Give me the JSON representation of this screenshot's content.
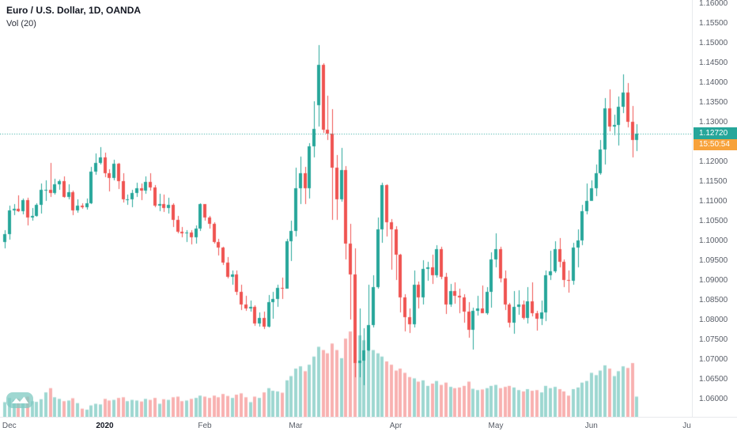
{
  "header": {
    "symbol_title": "Euro / U.S. Dollar, 1D, OANDA",
    "indicator_label": "Vol (20)"
  },
  "price_axis": {
    "ticks": [
      "1.16000",
      "1.15500",
      "1.15000",
      "1.14500",
      "1.14000",
      "1.13500",
      "1.13000",
      "1.12000",
      "1.11500",
      "1.11000",
      "1.10500",
      "1.10000",
      "1.09500",
      "1.09000",
      "1.08500",
      "1.08000",
      "1.07500",
      "1.07000",
      "1.06500",
      "1.06000"
    ],
    "last_price_label": "1.12720",
    "countdown_label": "15:50:54"
  },
  "time_axis": {
    "ticks": [
      {
        "label": "Dec",
        "index": 1
      },
      {
        "label": "2020",
        "index": 22,
        "bold": true
      },
      {
        "label": "Feb",
        "index": 44
      },
      {
        "label": "Mar",
        "index": 64
      },
      {
        "label": "Apr",
        "index": 86
      },
      {
        "label": "May",
        "index": 108
      },
      {
        "label": "Jun",
        "index": 129
      },
      {
        "label": "Ju",
        "index": 150
      }
    ]
  },
  "chart_data": {
    "type": "candlestick",
    "title": "Euro / U.S. Dollar, 1D, OANDA",
    "volume_indicator": "Vol (20)",
    "interval": "1D",
    "price_range": [
      1.06,
      1.16
    ],
    "price_tick_step": 0.005,
    "last_price": 1.1272,
    "countdown": "15:50:54",
    "x_axis_labels": [
      "Dec",
      "2020",
      "Feb",
      "Mar",
      "Apr",
      "May",
      "Jun",
      "Ju"
    ],
    "colors": {
      "up": "#26a69a",
      "down": "#ef5350",
      "volume_up": "rgba(38,166,154,0.45)",
      "volume_down": "rgba(239,83,80,0.45)",
      "last_price_line": "#26a69a",
      "last_price_tag_bg": "#26a69a",
      "countdown_tag_bg": "#f7a23b",
      "axis_text": "#575c66",
      "title_text": "#131722"
    },
    "candles": [
      [
        1.0998,
        1.1028,
        1.0981,
        1.1018
      ],
      [
        1.1018,
        1.109,
        1.1003,
        1.1078
      ],
      [
        1.1078,
        1.1094,
        1.1066,
        1.1082
      ],
      [
        1.1082,
        1.1116,
        1.1075,
        1.1077
      ],
      [
        1.1077,
        1.1108,
        1.1068,
        1.1103
      ],
      [
        1.1103,
        1.1111,
        1.104,
        1.106
      ],
      [
        1.106,
        1.1084,
        1.1053,
        1.1064
      ],
      [
        1.1064,
        1.1097,
        1.1062,
        1.1093
      ],
      [
        1.1093,
        1.1145,
        1.107,
        1.113
      ],
      [
        1.113,
        1.1154,
        1.1102,
        1.1131
      ],
      [
        1.1131,
        1.1199,
        1.1113,
        1.1121
      ],
      [
        1.1121,
        1.1159,
        1.1118,
        1.1143
      ],
      [
        1.1143,
        1.1156,
        1.1129,
        1.1152
      ],
      [
        1.1152,
        1.1163,
        1.111,
        1.1112
      ],
      [
        1.1112,
        1.1143,
        1.1106,
        1.1123
      ],
      [
        1.1123,
        1.1128,
        1.1066,
        1.1078
      ],
      [
        1.1078,
        1.1105,
        1.1072,
        1.1089
      ],
      [
        1.1089,
        1.1096,
        1.1081,
        1.1086
      ],
      [
        1.1086,
        1.1107,
        1.1079,
        1.1097
      ],
      [
        1.1097,
        1.1188,
        1.1095,
        1.1176
      ],
      [
        1.1176,
        1.1221,
        1.1167,
        1.1199
      ],
      [
        1.1199,
        1.1239,
        1.1194,
        1.1212
      ],
      [
        1.1212,
        1.1224,
        1.1161,
        1.1172
      ],
      [
        1.1172,
        1.1181,
        1.1125,
        1.116
      ],
      [
        1.116,
        1.1206,
        1.1154,
        1.1196
      ],
      [
        1.1196,
        1.1198,
        1.1133,
        1.1153
      ],
      [
        1.1153,
        1.1171,
        1.1098,
        1.1105
      ],
      [
        1.1105,
        1.1118,
        1.1092,
        1.1106
      ],
      [
        1.1106,
        1.1131,
        1.1085,
        1.1122
      ],
      [
        1.1122,
        1.1148,
        1.1113,
        1.1134
      ],
      [
        1.1134,
        1.1145,
        1.1104,
        1.1128
      ],
      [
        1.1128,
        1.1163,
        1.1119,
        1.115
      ],
      [
        1.115,
        1.1172,
        1.1128,
        1.1137
      ],
      [
        1.1137,
        1.1141,
        1.1085,
        1.109
      ],
      [
        1.109,
        1.1119,
        1.1077,
        1.1095
      ],
      [
        1.1095,
        1.1118,
        1.1074,
        1.1084
      ],
      [
        1.1084,
        1.1109,
        1.1071,
        1.1093
      ],
      [
        1.1093,
        1.1097,
        1.1036,
        1.1055
      ],
      [
        1.1055,
        1.1063,
        1.102,
        1.1024
      ],
      [
        1.1024,
        1.1037,
        1.101,
        1.1019
      ],
      [
        1.1019,
        1.1027,
        1.0998,
        1.1021
      ],
      [
        1.1021,
        1.1027,
        1.0992,
        1.101
      ],
      [
        1.101,
        1.1039,
        1.0995,
        1.1032
      ],
      [
        1.1032,
        1.1096,
        1.1025,
        1.1094
      ],
      [
        1.1094,
        1.1095,
        1.1052,
        1.106
      ],
      [
        1.106,
        1.1064,
        1.1033,
        1.1044
      ],
      [
        1.1044,
        1.1048,
        1.0995,
        1.0998
      ],
      [
        1.0998,
        1.1005,
        1.0963,
        1.0983
      ],
      [
        1.0983,
        1.0986,
        1.094,
        1.0945
      ],
      [
        1.0945,
        1.0959,
        1.0906,
        1.091
      ],
      [
        1.091,
        1.0925,
        1.0891,
        1.0917
      ],
      [
        1.0917,
        1.0925,
        1.0865,
        1.0873
      ],
      [
        1.0873,
        1.089,
        1.0827,
        1.084
      ],
      [
        1.084,
        1.0862,
        1.0825,
        1.083
      ],
      [
        1.083,
        1.0851,
        1.0821,
        1.0834
      ],
      [
        1.0834,
        1.0838,
        1.0786,
        1.0792
      ],
      [
        1.0792,
        1.0819,
        1.0784,
        1.0806
      ],
      [
        1.0806,
        1.0821,
        1.0778,
        1.0785
      ],
      [
        1.0785,
        1.0864,
        1.0783,
        1.0846
      ],
      [
        1.0846,
        1.0873,
        1.0805,
        1.0854
      ],
      [
        1.0854,
        1.089,
        1.0835,
        1.0881
      ],
      [
        1.0881,
        1.0909,
        1.0855,
        1.088
      ],
      [
        1.088,
        1.1006,
        1.0879,
        1.1
      ],
      [
        1.1,
        1.1053,
        1.0951,
        1.1026
      ],
      [
        1.1026,
        1.1185,
        1.1012,
        1.1134
      ],
      [
        1.1134,
        1.1214,
        1.1095,
        1.1173
      ],
      [
        1.1173,
        1.1187,
        1.1095,
        1.1135
      ],
      [
        1.1135,
        1.1248,
        1.1107,
        1.124
      ],
      [
        1.124,
        1.1355,
        1.1213,
        1.1284
      ],
      [
        1.1344,
        1.1495,
        1.1289,
        1.1445
      ],
      [
        1.1445,
        1.145,
        1.1273,
        1.1281
      ],
      [
        1.1281,
        1.1367,
        1.1256,
        1.1271
      ],
      [
        1.1271,
        1.1333,
        1.1054,
        1.1185
      ],
      [
        1.1185,
        1.1219,
        1.1055,
        1.1106
      ],
      [
        1.1106,
        1.1237,
        1.11,
        1.118
      ],
      [
        1.118,
        1.1189,
        1.0955,
        1.0995
      ],
      [
        1.0995,
        1.1043,
        1.0802,
        1.0916
      ],
      [
        1.0916,
        1.0982,
        1.0656,
        1.0692
      ],
      [
        1.0692,
        1.0831,
        1.0656,
        1.0698
      ],
      [
        1.0698,
        1.078,
        1.0636,
        1.0725
      ],
      [
        1.0725,
        1.089,
        1.0722,
        1.0789
      ],
      [
        1.0789,
        1.0915,
        1.0783,
        1.0883
      ],
      [
        1.0883,
        1.1059,
        1.088,
        1.103
      ],
      [
        1.103,
        1.1148,
        1.0997,
        1.1141
      ],
      [
        1.1141,
        1.1144,
        1.1012,
        1.1047
      ],
      [
        1.1047,
        1.1056,
        1.0928,
        1.1031
      ],
      [
        1.1031,
        1.1038,
        1.0902,
        1.0965
      ],
      [
        1.0965,
        1.0969,
        1.0819,
        1.0858
      ],
      [
        1.0858,
        1.0866,
        1.0773,
        1.0808
      ],
      [
        1.0808,
        1.083,
        1.0768,
        1.0791
      ],
      [
        1.0791,
        1.0925,
        1.0783,
        1.0891
      ],
      [
        1.0891,
        1.0898,
        1.083,
        1.0857
      ],
      [
        1.0857,
        1.0952,
        1.084,
        1.093
      ],
      [
        1.093,
        1.0949,
        1.0899,
        1.0935
      ],
      [
        1.0935,
        1.0967,
        1.0893,
        1.0914
      ],
      [
        1.0914,
        1.099,
        1.0909,
        1.098
      ],
      [
        1.098,
        1.0986,
        1.0904,
        1.0911
      ],
      [
        1.0911,
        1.0919,
        1.0816,
        1.0839
      ],
      [
        1.0839,
        1.0893,
        1.0834,
        1.0875
      ],
      [
        1.0875,
        1.0897,
        1.0842,
        1.0862
      ],
      [
        1.0862,
        1.0879,
        1.0817,
        1.0858
      ],
      [
        1.0858,
        1.0866,
        1.0795,
        1.0822
      ],
      [
        1.0822,
        1.0846,
        1.0756,
        1.0776
      ],
      [
        1.0776,
        1.0833,
        1.0726,
        1.0823
      ],
      [
        1.0823,
        1.0862,
        1.0812,
        1.083
      ],
      [
        1.083,
        1.0889,
        1.0818,
        1.0818
      ],
      [
        1.0818,
        1.0885,
        1.0815,
        1.0873
      ],
      [
        1.0873,
        1.0972,
        1.0833,
        1.0955
      ],
      [
        1.0955,
        1.1019,
        1.0934,
        1.098
      ],
      [
        1.098,
        1.0985,
        1.0896,
        1.0906
      ],
      [
        1.0906,
        1.0926,
        1.0826,
        1.084
      ],
      [
        1.084,
        1.0845,
        1.0782,
        1.0795
      ],
      [
        1.0795,
        1.0875,
        1.0766,
        1.0834
      ],
      [
        1.0834,
        1.0876,
        1.0815,
        1.0839
      ],
      [
        1.0839,
        1.0851,
        1.0801,
        1.0807
      ],
      [
        1.0807,
        1.0885,
        1.0793,
        1.0849
      ],
      [
        1.0849,
        1.0897,
        1.081,
        1.0818
      ],
      [
        1.0818,
        1.0824,
        1.0774,
        1.0804
      ],
      [
        1.0804,
        1.0851,
        1.0789,
        1.082
      ],
      [
        1.082,
        1.0927,
        1.0797,
        1.0915
      ],
      [
        1.0915,
        1.0976,
        1.0902,
        1.0924
      ],
      [
        1.0924,
        1.0999,
        1.0919,
        1.0979
      ],
      [
        1.0979,
        1.1008,
        1.0935,
        1.0949
      ],
      [
        1.0949,
        1.0955,
        1.0885,
        1.0901
      ],
      [
        1.0901,
        1.0927,
        1.087,
        1.0899
      ],
      [
        1.0899,
        1.0996,
        1.0891,
        1.0983
      ],
      [
        1.0983,
        1.1031,
        1.0934,
        1.1002
      ],
      [
        1.1002,
        1.1093,
        1.0991,
        1.1077
      ],
      [
        1.1077,
        1.1145,
        1.1068,
        1.1101
      ],
      [
        1.1101,
        1.1154,
        1.1101,
        1.1134
      ],
      [
        1.1134,
        1.1195,
        1.1115,
        1.1172
      ],
      [
        1.1172,
        1.1257,
        1.1167,
        1.1233
      ],
      [
        1.1233,
        1.1362,
        1.1195,
        1.1337
      ],
      [
        1.1337,
        1.1384,
        1.1279,
        1.129
      ],
      [
        1.129,
        1.132,
        1.1268,
        1.1294
      ],
      [
        1.1294,
        1.1366,
        1.1241,
        1.134
      ],
      [
        1.134,
        1.1422,
        1.1323,
        1.1375
      ],
      [
        1.1375,
        1.14,
        1.1288,
        1.1301
      ],
      [
        1.1301,
        1.1341,
        1.1211,
        1.1256
      ],
      [
        1.1256,
        1.1297,
        1.1227,
        1.1272
      ]
    ],
    "volumes": [
      45,
      58,
      52,
      55,
      50,
      62,
      48,
      46,
      54,
      75,
      88,
      60,
      55,
      48,
      50,
      57,
      42,
      25,
      22,
      35,
      40,
      38,
      55,
      50,
      52,
      58,
      60,
      48,
      52,
      50,
      47,
      55,
      52,
      58,
      40,
      54,
      52,
      60,
      62,
      48,
      50,
      55,
      58,
      65,
      62,
      58,
      65,
      60,
      70,
      64,
      58,
      68,
      72,
      60,
      45,
      62,
      58,
      75,
      88,
      80,
      78,
      74,
      112,
      125,
      148,
      155,
      140,
      160,
      185,
      215,
      205,
      195,
      225,
      205,
      180,
      240,
      262,
      272,
      250,
      235,
      220,
      205,
      195,
      185,
      170,
      160,
      142,
      148,
      135,
      122,
      118,
      108,
      112,
      95,
      102,
      110,
      98,
      105,
      92,
      88,
      90,
      95,
      108,
      86,
      82,
      84,
      88,
      95,
      98,
      88,
      92,
      95,
      90,
      82,
      78,
      85,
      80,
      82,
      75,
      95,
      88,
      92,
      85,
      78,
      65,
      85,
      90,
      105,
      110,
      135,
      128,
      142,
      158,
      148,
      125,
      140,
      155,
      150,
      165,
      62
    ]
  },
  "watermark": {
    "name": "tradingview-logo",
    "color": "#26a69a"
  }
}
